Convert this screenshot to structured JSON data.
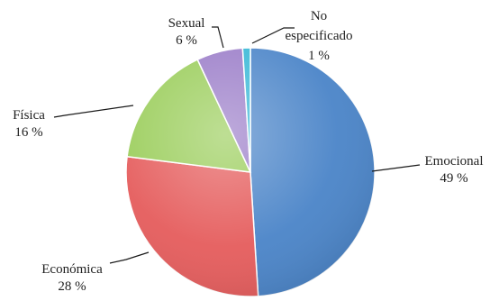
{
  "chart_data": {
    "type": "pie",
    "title": "",
    "unit": "%",
    "slices": [
      {
        "label": "Emocional",
        "value": 49,
        "value_text": "49 %",
        "color": "#4a84c8"
      },
      {
        "label": "Económica",
        "value": 28,
        "value_text": "28 %",
        "color": "#e55c5c"
      },
      {
        "label": "Física",
        "value": 16,
        "value_text": "16 %",
        "color": "#9acd5a"
      },
      {
        "label": "Sexual",
        "value": 6,
        "value_text": "6 %",
        "color": "#9a7cc8"
      },
      {
        "label": "No especificado",
        "label_lines": [
          "No",
          "especificado"
        ],
        "value": 1,
        "value_text": "1 %",
        "color": "#35b7d6"
      }
    ],
    "start": "12 o'clock",
    "direction": "clockwise",
    "legend": "none",
    "labels": "outside with leader lines"
  }
}
